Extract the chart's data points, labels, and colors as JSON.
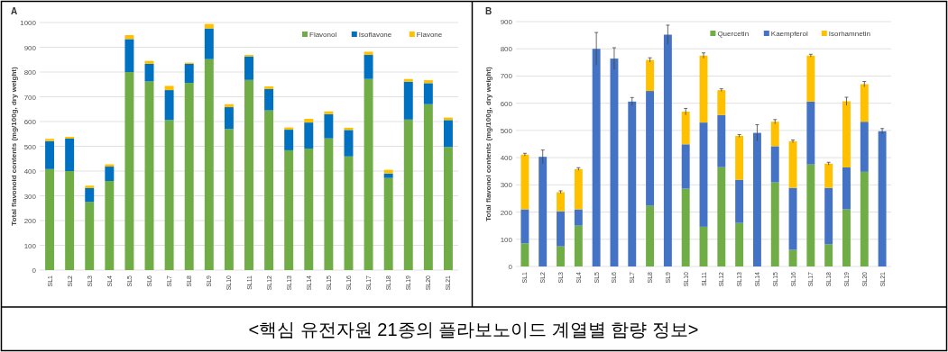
{
  "chart_data": [
    {
      "type": "bar",
      "title": "A",
      "stacked": true,
      "ylabel": "Total flavonoid contents (mg/100g, dry weight)",
      "categories": [
        "SL1",
        "SL2",
        "SL3",
        "SL4",
        "SL5",
        "SL6",
        "SL7",
        "SL8",
        "SL9",
        "SL10",
        "SL11",
        "SL12",
        "SL13",
        "SL14",
        "SL15",
        "SL16",
        "SL17",
        "SL18",
        "SL19",
        "SL20",
        "SL21"
      ],
      "series": [
        {
          "name": "Flavonol",
          "color": "#70ad47",
          "values": [
            408,
            400,
            275,
            360,
            800,
            762,
            606,
            756,
            852,
            570,
            768,
            645,
            484,
            491,
            532,
            459,
            772,
            372,
            608,
            670,
            497
          ]
        },
        {
          "name": "Isoflavone",
          "color": "#0070c0",
          "values": [
            113,
            131,
            56,
            58,
            133,
            71,
            121,
            77,
            124,
            88,
            95,
            86,
            83,
            105,
            98,
            107,
            97,
            18,
            153,
            85,
            109
          ]
        },
        {
          "name": "Flavone",
          "color": "#ffc000",
          "values": [
            9,
            7,
            10,
            9,
            16,
            12,
            17,
            5,
            18,
            12,
            6,
            11,
            9,
            15,
            11,
            9,
            13,
            15,
            11,
            12,
            10
          ]
        }
      ],
      "ylim": [
        0,
        1000
      ],
      "yticks": [
        0,
        100,
        200,
        300,
        400,
        500,
        600,
        700,
        800,
        900,
        1000
      ],
      "grid": "y",
      "legend": "top right",
      "annotations": [
        "<핵심 유전자원 21종의 플라보노이드 계열별 함량 정보>"
      ]
    },
    {
      "type": "bar",
      "title": "B",
      "stacked": true,
      "ylabel": "Total flavonol contents (mg/100g, dry weight)",
      "categories": [
        "SL1",
        "SL2",
        "SL3",
        "SL4",
        "SL5",
        "SL6",
        "SL7",
        "SL8",
        "SL9",
        "SL10",
        "SL11",
        "SL12",
        "SL13",
        "SL14",
        "SL15",
        "SL16",
        "SL17",
        "SL18",
        "SL19",
        "SL20",
        "SL21"
      ],
      "series": [
        {
          "name": "Quercetin",
          "color": "#70ad47",
          "values": [
            85,
            0,
            74,
            150,
            0,
            0,
            0,
            223,
            0,
            286,
            146,
            365,
            160,
            0,
            309,
            61,
            375,
            82,
            210,
            348,
            0
          ]
        },
        {
          "name": "Kaempferol",
          "color": "#4472c4",
          "values": [
            125,
            403,
            129,
            60,
            800,
            764,
            606,
            422,
            852,
            163,
            383,
            192,
            159,
            491,
            133,
            228,
            231,
            207,
            154,
            184,
            497
          ],
          "errors": [
            null,
            25,
            null,
            null,
            60,
            40,
            15,
            null,
            35,
            null,
            null,
            null,
            null,
            30,
            null,
            null,
            null,
            null,
            null,
            null,
            10
          ]
        },
        {
          "name": "Isorhamnetin",
          "color": "#ffc000",
          "values": [
            201,
            0,
            70,
            148,
            0,
            0,
            0,
            114,
            0,
            120,
            246,
            91,
            161,
            0,
            90,
            171,
            169,
            89,
            243,
            138,
            0
          ],
          "errors": [
            5,
            null,
            5,
            5,
            null,
            null,
            null,
            8,
            null,
            12,
            10,
            5,
            5,
            null,
            8,
            5,
            5,
            5,
            15,
            10,
            null
          ]
        }
      ],
      "ylim": [
        0,
        900
      ],
      "yticks": [
        0,
        100,
        200,
        300,
        400,
        500,
        600,
        700,
        800,
        900
      ],
      "grid": "y",
      "legend": "top right"
    }
  ]
}
